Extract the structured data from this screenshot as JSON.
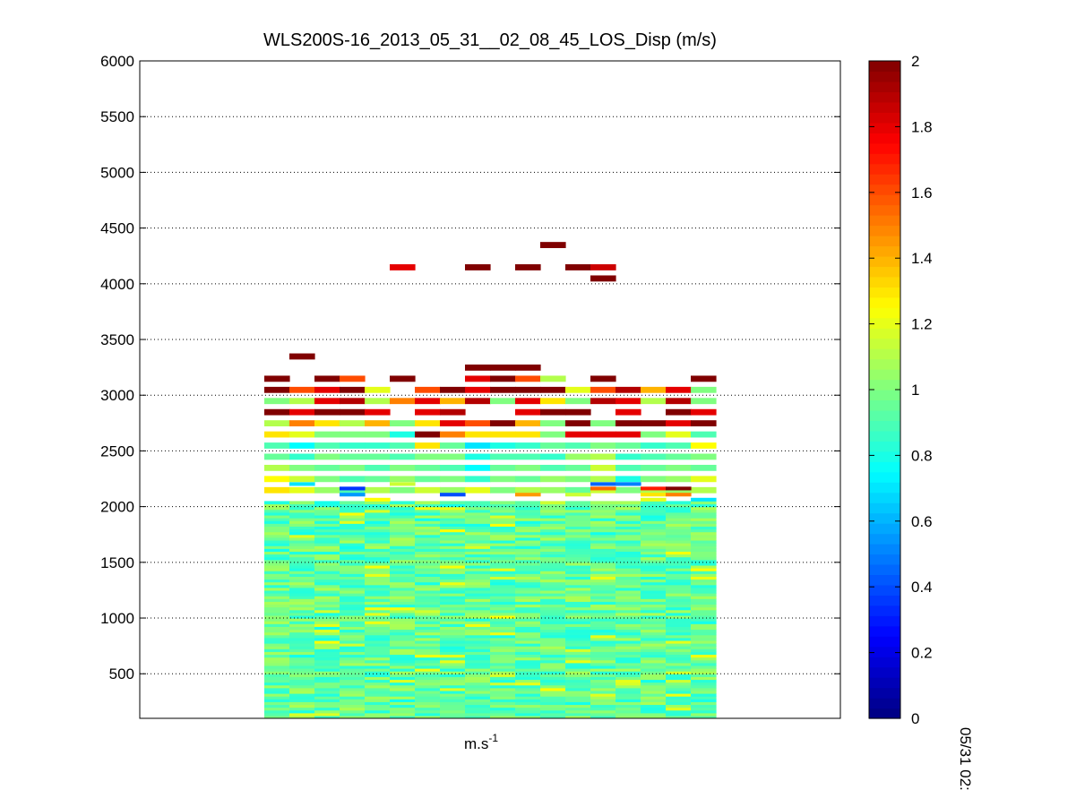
{
  "chart_data": {
    "type": "heatmap",
    "title": "WLS200S-16_2013_05_31__02_08_45_LOS_Disp (m/s)",
    "xlabel_base": "m.s",
    "xlabel_exp": "-1",
    "ylabel": "",
    "ylim": [
      100,
      6000
    ],
    "yticks": [
      500,
      1000,
      1500,
      2000,
      2500,
      3000,
      3500,
      4000,
      4500,
      5000,
      5500,
      6000
    ],
    "grid": "dotted horizontal",
    "colorbar": {
      "colormap": "jet",
      "range": [
        0,
        2
      ],
      "ticks": [
        0,
        0.2,
        0.4,
        0.6,
        0.8,
        1,
        1.2,
        1.4,
        1.6,
        1.8,
        2
      ],
      "tick_labels": [
        "0",
        "0.2",
        "0.4",
        "0.6",
        "0.8",
        "1",
        "1.2",
        "1.4",
        "1.6",
        "1.8",
        "2"
      ]
    },
    "side_label": "05/31 02:",
    "num_columns": 18,
    "cell_height": 50,
    "dense_rows_from": 100,
    "dense_rows_to": 2050,
    "dense_row_height": 25,
    "upper_rows": [
      {
        "z": 3350,
        "values": [
          null,
          2,
          null,
          null,
          null,
          null,
          null,
          null,
          null,
          null,
          null,
          null,
          null,
          null,
          null,
          null,
          null,
          null
        ]
      },
      {
        "z": 3250,
        "values": [
          null,
          null,
          null,
          null,
          null,
          null,
          null,
          null,
          2,
          2,
          2,
          null,
          null,
          null,
          null,
          null,
          null,
          null
        ]
      },
      {
        "z": 3150,
        "values": [
          2,
          null,
          2,
          1.6,
          null,
          2,
          null,
          null,
          1.8,
          2,
          1.6,
          1.1,
          null,
          2,
          null,
          null,
          null,
          2
        ]
      },
      {
        "z": 3050,
        "values": [
          2,
          1.6,
          1.8,
          2,
          1.2,
          null,
          1.6,
          2,
          1.8,
          2,
          2,
          2,
          1.2,
          1.6,
          1.9,
          1.4,
          1.8,
          1.0
        ]
      },
      {
        "z": 2950,
        "values": [
          1.0,
          1.1,
          1.8,
          1.9,
          1.1,
          1.5,
          1.8,
          1.4,
          1.9,
          1.0,
          1.8,
          1.3,
          1.0,
          1.9,
          1.8,
          1.1,
          1.9,
          1.0
        ]
      },
      {
        "z": 2850,
        "values": [
          2,
          1.8,
          2,
          2,
          1.8,
          null,
          1.8,
          1.9,
          null,
          null,
          1.8,
          2,
          2,
          null,
          1.8,
          null,
          2,
          1.8
        ]
      },
      {
        "z": 2750,
        "values": [
          1.1,
          1.5,
          1.3,
          1.1,
          1.4,
          1.0,
          1.3,
          1.8,
          1.6,
          2,
          1.4,
          1.0,
          2,
          1.0,
          2,
          2,
          1.8,
          2
        ]
      },
      {
        "z": 2650,
        "values": [
          1.3,
          1.2,
          1.0,
          1.0,
          1.0,
          0.8,
          2,
          1.5,
          1.3,
          1.3,
          1.3,
          1.0,
          1.8,
          1.8,
          1.8,
          1.0,
          1.2,
          0.9
        ]
      },
      {
        "z": 2550,
        "values": [
          0.9,
          0.75,
          0.9,
          0.85,
          0.85,
          0.9,
          1.3,
          0.95,
          0.7,
          0.8,
          0.85,
          0.95,
          0.9,
          1.0,
          0.95,
          0.85,
          0.9,
          1.25
        ]
      },
      {
        "z": 2450,
        "values": [
          0.95,
          0.85,
          1.0,
          0.95,
          0.95,
          0.9,
          1.0,
          1.0,
          0.8,
          0.9,
          0.9,
          0.85,
          1.05,
          1.1,
          0.85,
          0.9,
          0.95,
          1.0
        ]
      },
      {
        "z": 2350,
        "values": [
          1.1,
          1.0,
          0.95,
          1.0,
          0.9,
          1.0,
          0.95,
          0.9,
          0.75,
          0.95,
          1.0,
          0.9,
          0.95,
          1.15,
          0.9,
          0.95,
          1.0,
          0.95
        ]
      },
      {
        "z": 2250,
        "values": [
          1.25,
          1.15,
          1.0,
          0.9,
          0.95,
          1.05,
          0.95,
          1.0,
          0.85,
          1.0,
          0.95,
          1.05,
          1.0,
          1.1,
          0.8,
          1.0,
          1.05,
          1.2
        ]
      },
      {
        "z": 2150,
        "values": [
          1.3,
          1.2,
          1.05,
          0.9,
          1.1,
          1.0,
          1.15,
          1.05,
          1.2,
          1.0,
          1.1,
          1.05,
          0.95,
          1.15,
          1.0,
          1.1,
          1.05,
          1.1
        ]
      }
    ],
    "thin_cells": [
      {
        "z": 2205,
        "col": 1,
        "value": 0.7
      },
      {
        "z": 2205,
        "col": 5,
        "value": 1.15
      },
      {
        "z": 2205,
        "col": 13,
        "value": 0.45
      },
      {
        "z": 2205,
        "col": 14,
        "value": 0.5
      },
      {
        "z": 2165,
        "col": 3,
        "value": 0.35
      },
      {
        "z": 2165,
        "col": 13,
        "value": 1.55
      },
      {
        "z": 2165,
        "col": 15,
        "value": 1.7
      },
      {
        "z": 2165,
        "col": 16,
        "value": 2
      },
      {
        "z": 2110,
        "col": 3,
        "value": 0.55
      },
      {
        "z": 2110,
        "col": 7,
        "value": 0.4
      },
      {
        "z": 2110,
        "col": 10,
        "value": 1.45
      },
      {
        "z": 2110,
        "col": 12,
        "value": 1.15
      },
      {
        "z": 2110,
        "col": 15,
        "value": 1.3
      },
      {
        "z": 2110,
        "col": 16,
        "value": 1.5
      },
      {
        "z": 2065,
        "col": 4,
        "value": 1.25
      },
      {
        "z": 2065,
        "col": 15,
        "value": 1.2
      },
      {
        "z": 2065,
        "col": 17,
        "value": 0.7
      }
    ],
    "sparse_cells": [
      {
        "z": 4350,
        "col": 11,
        "value": 2
      },
      {
        "z": 4150,
        "col": 5,
        "value": 1.8
      },
      {
        "z": 4150,
        "col": 8,
        "value": 2
      },
      {
        "z": 4150,
        "col": 10,
        "value": 2
      },
      {
        "z": 4150,
        "col": 12,
        "value": 2
      },
      {
        "z": 4150,
        "col": 13,
        "value": 1.85
      },
      {
        "z": 4050,
        "col": 13,
        "value": 2
      }
    ]
  }
}
